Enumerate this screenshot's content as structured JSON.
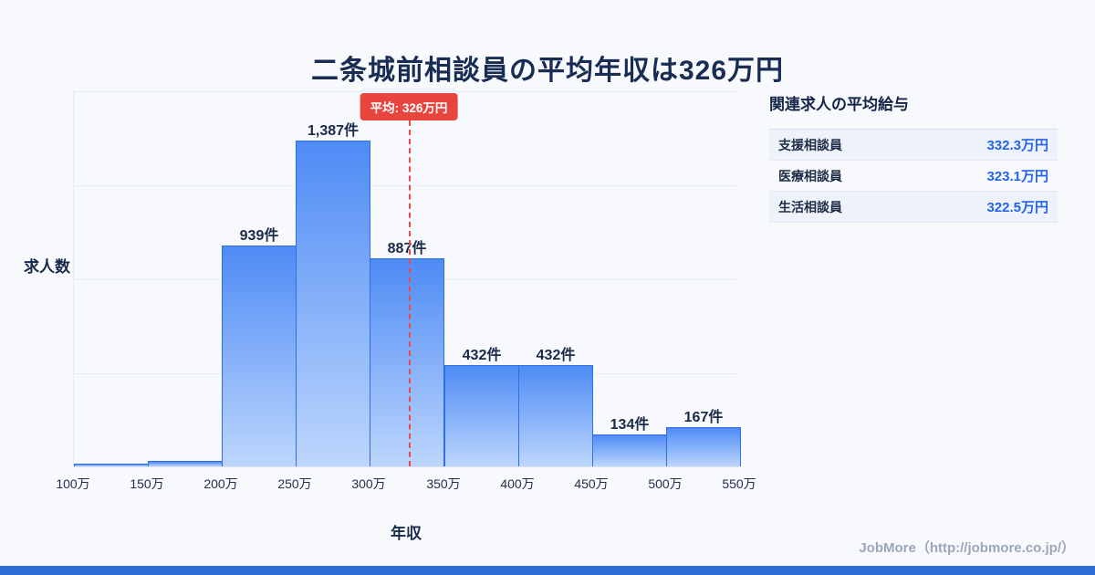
{
  "title": "二条城前相談員の平均年収は326万円",
  "chart_data": {
    "type": "bar",
    "title": "二条城前相談員の平均年収は326万円",
    "xlabel": "年収",
    "ylabel": "求人数",
    "x_ticks": [
      "100万",
      "150万",
      "200万",
      "250万",
      "300万",
      "350万",
      "400万",
      "450万",
      "500万",
      "550万"
    ],
    "x_min": 100,
    "x_max": 550,
    "values": [
      12,
      22,
      939,
      1387,
      887,
      432,
      432,
      134,
      167
    ],
    "labels": [
      "",
      "",
      "939件",
      "1,387件",
      "887件",
      "432件",
      "432件",
      "134件",
      "167件"
    ],
    "ymax": 1600,
    "grid": true,
    "average": {
      "value": 326,
      "label": "平均: 326万円"
    }
  },
  "side_panel": {
    "heading": "関連求人の平均給与",
    "rows": [
      {
        "name": "支援相談員",
        "value": "332.3万円"
      },
      {
        "name": "医療相談員",
        "value": "323.1万円"
      },
      {
        "name": "生活相談員",
        "value": "322.5万円"
      }
    ]
  },
  "footer": {
    "credit": "JobMore（http://jobmore.co.jp/）"
  },
  "colors": {
    "bar_top": "#4e8bf5",
    "bar_bottom": "#bdd6fd",
    "bar_border": "#2f6fe4",
    "average_line": "#e64c4c",
    "average_badge": "#e8453f",
    "value_text": "#2563eb",
    "title_text": "#182c54",
    "footer_bar": "#2e6bd3"
  }
}
